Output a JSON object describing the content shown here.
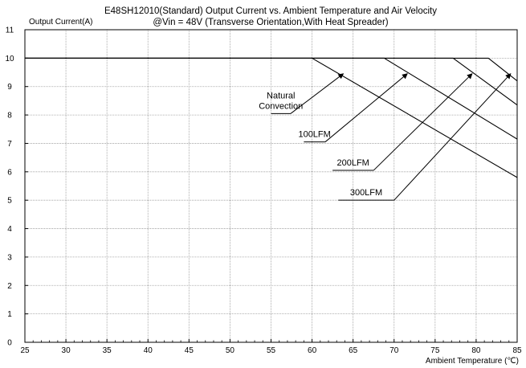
{
  "chart_data": {
    "type": "line",
    "title_line1": "E48SH12010(Standard)  Output Current vs. Ambient Temperature and Air Velocity",
    "title_line2": "@Vin = 48V (Transverse Orientation,With Heat Spreader)",
    "ylabel": "Output Current(A)",
    "xlabel": "Ambient Temperature (℃)",
    "xlim": [
      25,
      85
    ],
    "ylim": [
      0,
      11
    ],
    "xticks": [
      25,
      30,
      35,
      40,
      45,
      50,
      55,
      60,
      65,
      70,
      75,
      80,
      85
    ],
    "yticks": [
      0,
      1,
      2,
      3,
      4,
      5,
      6,
      7,
      8,
      9,
      10,
      11
    ],
    "grid": true,
    "series": [
      {
        "name": "Natural Convection",
        "points": [
          [
            25,
            10
          ],
          [
            60,
            10
          ],
          [
            85,
            5.8
          ]
        ]
      },
      {
        "name": "100LFM",
        "points": [
          [
            25,
            10
          ],
          [
            68.8,
            10
          ],
          [
            85,
            7.15
          ]
        ]
      },
      {
        "name": "200LFM",
        "points": [
          [
            25,
            10
          ],
          [
            77.2,
            10
          ],
          [
            85,
            8.35
          ]
        ]
      },
      {
        "name": "300LFM",
        "points": [
          [
            25,
            10
          ],
          [
            81.5,
            10
          ],
          [
            85,
            9.2
          ]
        ]
      }
    ],
    "annotations": [
      {
        "label_lines": [
          "Natural",
          "Convection"
        ],
        "line_from": [
          55,
          8.05
        ],
        "elbow": [
          57.4,
          8.05
        ],
        "arrow_to": [
          63.8,
          9.45
        ]
      },
      {
        "label_lines": [
          "100LFM"
        ],
        "line_from": [
          59,
          7.05
        ],
        "elbow": [
          61.6,
          7.05
        ],
        "arrow_to": [
          71.6,
          9.45
        ]
      },
      {
        "label_lines": [
          "200LFM"
        ],
        "line_from": [
          62.5,
          6.05
        ],
        "elbow": [
          67.5,
          6.05
        ],
        "arrow_to": [
          79.5,
          9.45
        ]
      },
      {
        "label_lines": [
          "300LFM"
        ],
        "line_from": [
          63.2,
          5.0
        ],
        "elbow": [
          70.0,
          5.0
        ],
        "arrow_to": [
          84.2,
          9.45
        ]
      }
    ]
  }
}
